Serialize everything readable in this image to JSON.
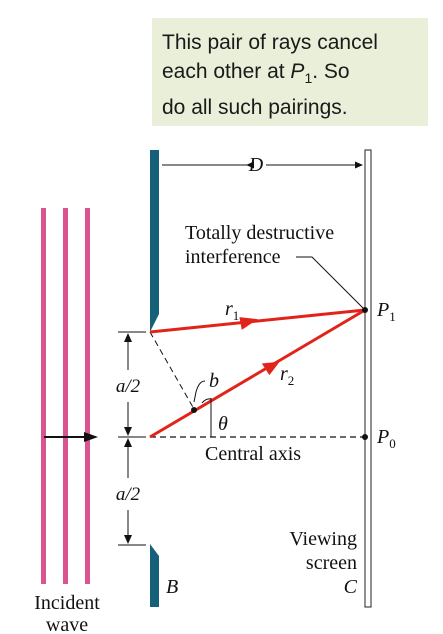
{
  "callout": {
    "line1": "This pair of rays cancel",
    "line2_pre": "each other at ",
    "line2_var": "P",
    "line2_sub": "1",
    "line2_post": ". So",
    "line3": "do all such pairings."
  },
  "labels": {
    "D": "D",
    "destructive_1": "Totally destructive",
    "destructive_2": "interference",
    "r1": "r",
    "r1_sub": "1",
    "r2": "r",
    "r2_sub": "2",
    "P1": "P",
    "P1_sub": "1",
    "P0": "P",
    "P0_sub": "0",
    "a_half_top": "a/2",
    "a_half_bottom": "a/2",
    "b": "b",
    "theta": "θ",
    "central_axis": "Central axis",
    "viewing_1": "Viewing",
    "viewing_2": "screen",
    "C": "C",
    "B": "B",
    "incident_1": "Incident",
    "incident_2": "wave"
  },
  "colors": {
    "ray": "#e2231a",
    "wave": "#d9558f",
    "barrier": "#17607a",
    "callout_bg": "#e9efd9"
  }
}
